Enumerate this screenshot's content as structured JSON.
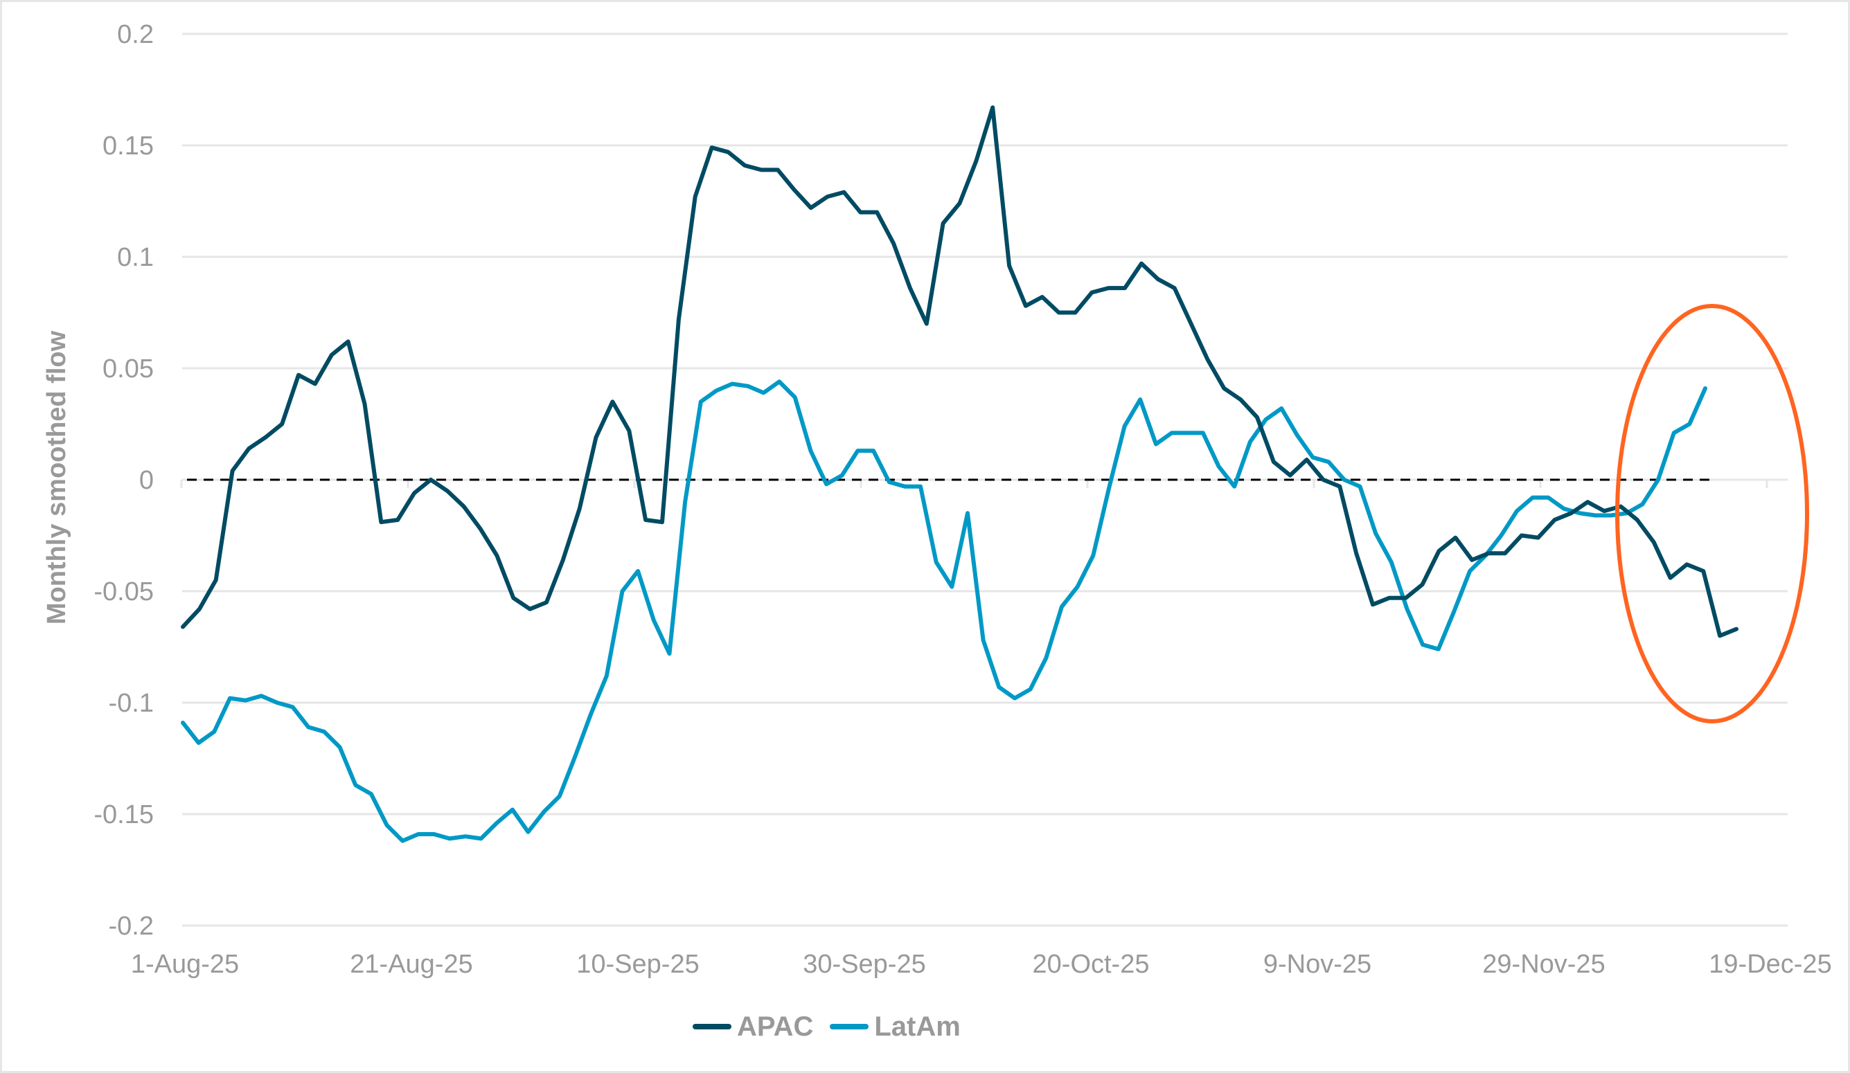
{
  "chart_data": {
    "type": "line",
    "title": "",
    "xlabel": "",
    "ylabel": "Monthly smoothed flow",
    "ylim": [
      -0.2,
      0.2
    ],
    "yticks": [
      "0.2",
      "0.15",
      "0.1",
      "0.05",
      "0",
      "-0.05",
      "-0.1",
      "-0.15",
      "-0.2"
    ],
    "xticks": [
      "1-Aug-25",
      "21-Aug-25",
      "10-Sep-25",
      "30-Sep-25",
      "20-Oct-25",
      "9-Nov-25",
      "29-Nov-25",
      "19-Dec-25"
    ],
    "grid": true,
    "zero_line": "dashed black",
    "legend_position": "bottom",
    "annotation": "orange ellipse highlighting mid-December divergence (APAC falling, LatAm rising)",
    "series": [
      {
        "name": "APAC",
        "color": "#004b63",
        "values": [
          -0.066,
          -0.058,
          -0.045,
          0.004,
          0.014,
          0.019,
          0.025,
          0.047,
          0.043,
          0.056,
          0.062,
          0.034,
          -0.019,
          -0.018,
          -0.006,
          0.0,
          -0.005,
          -0.012,
          -0.022,
          -0.034,
          -0.053,
          -0.058,
          -0.055,
          -0.036,
          -0.013,
          0.019,
          0.035,
          0.022,
          -0.018,
          -0.019,
          0.072,
          0.127,
          0.149,
          0.147,
          0.141,
          0.139,
          0.139,
          0.13,
          0.122,
          0.127,
          0.129,
          0.12,
          0.12,
          0.106,
          0.086,
          0.07,
          0.115,
          0.124,
          0.143,
          0.167,
          0.096,
          0.078,
          0.082,
          0.075,
          0.075,
          0.084,
          0.086,
          0.086,
          0.097,
          0.09,
          0.086,
          0.07,
          0.054,
          0.041,
          0.036,
          0.028,
          0.008,
          0.002,
          0.009,
          0.0,
          -0.003,
          -0.033,
          -0.056,
          -0.053,
          -0.053,
          -0.047,
          -0.032,
          -0.026,
          -0.036,
          -0.033,
          -0.033,
          -0.025,
          -0.026,
          -0.018,
          -0.015,
          -0.01,
          -0.014,
          -0.012,
          -0.018,
          -0.028,
          -0.044,
          -0.038,
          -0.041,
          -0.07,
          -0.067
        ]
      },
      {
        "name": "LatAm",
        "color": "#0099c6",
        "values": [
          -0.109,
          -0.118,
          -0.113,
          -0.098,
          -0.099,
          -0.097,
          -0.1,
          -0.102,
          -0.111,
          -0.113,
          -0.12,
          -0.137,
          -0.141,
          -0.155,
          -0.162,
          -0.159,
          -0.159,
          -0.161,
          -0.16,
          -0.161,
          -0.154,
          -0.148,
          -0.158,
          -0.149,
          -0.142,
          -0.124,
          -0.105,
          -0.088,
          -0.05,
          -0.041,
          -0.063,
          -0.078,
          -0.01,
          0.035,
          0.04,
          0.043,
          0.042,
          0.039,
          0.044,
          0.037,
          0.013,
          -0.002,
          0.002,
          0.013,
          0.013,
          -0.001,
          -0.003,
          -0.003,
          -0.037,
          -0.048,
          -0.015,
          -0.072,
          -0.093,
          -0.098,
          -0.094,
          -0.08,
          -0.057,
          -0.048,
          -0.034,
          -0.004,
          0.024,
          0.036,
          0.016,
          0.021,
          0.021,
          0.021,
          0.006,
          -0.003,
          0.017,
          0.027,
          0.032,
          0.02,
          0.01,
          0.008,
          0.0,
          -0.003,
          -0.024,
          -0.037,
          -0.058,
          -0.074,
          -0.076,
          -0.059,
          -0.041,
          -0.034,
          -0.025,
          -0.014,
          -0.008,
          -0.008,
          -0.013,
          -0.015,
          -0.016,
          -0.016,
          -0.015,
          -0.011,
          0.0,
          0.021,
          0.025,
          0.041
        ]
      }
    ]
  },
  "legend": {
    "items": [
      {
        "label": "APAC",
        "color": "#004b63"
      },
      {
        "label": "LatAm",
        "color": "#0099c6"
      }
    ]
  },
  "annotation": {
    "shape": "ellipse",
    "color": "#ff6420"
  }
}
